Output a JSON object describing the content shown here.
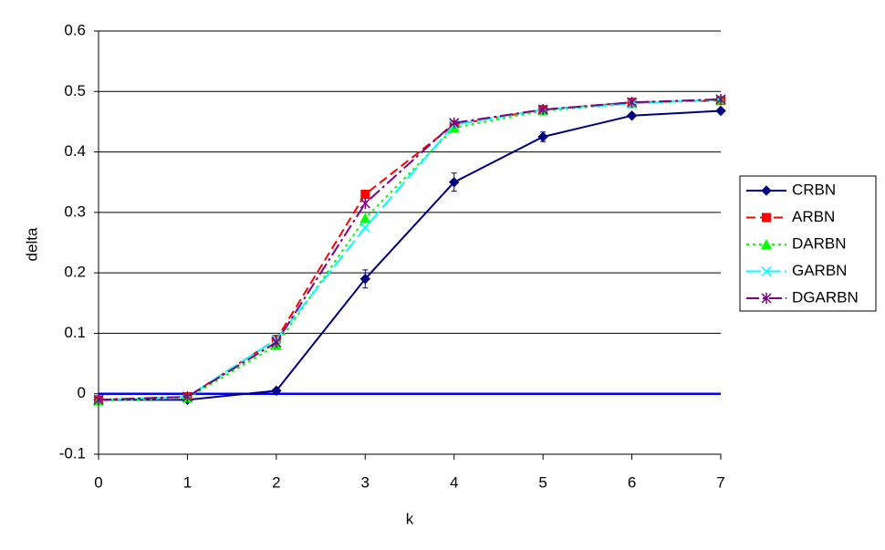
{
  "chart_data": {
    "type": "line",
    "x_label": "k",
    "y_label": "delta",
    "x": [
      0,
      1,
      2,
      3,
      4,
      5,
      6,
      7
    ],
    "xlim": [
      0,
      7
    ],
    "xticks": [
      0,
      1,
      2,
      3,
      4,
      5,
      6,
      7
    ],
    "ylim": [
      -0.1,
      0.6
    ],
    "yticks": [
      -0.1,
      0,
      0.1,
      0.2,
      0.3,
      0.4,
      0.5,
      0.6
    ],
    "grid": true,
    "zero_line_color": "#0000ff",
    "legend": "right",
    "series": [
      {
        "name": "CRBN",
        "color": "#000080",
        "marker": "diamond",
        "line_style": "solid",
        "values": [
          -0.01,
          -0.01,
          0.005,
          0.19,
          0.35,
          0.425,
          0.46,
          0.468
        ],
        "errors": [
          0.003,
          0.003,
          0.003,
          0.015,
          0.015,
          0.008,
          0.003,
          0.003
        ]
      },
      {
        "name": "ARBN",
        "color": "#ff0000",
        "marker": "square",
        "line_style": "dashed",
        "values": [
          -0.01,
          -0.005,
          0.09,
          0.33,
          0.445,
          0.47,
          0.482,
          0.485
        ]
      },
      {
        "name": "DARBN",
        "color": "#00ff00",
        "marker": "triangle",
        "line_style": "dotted",
        "values": [
          -0.012,
          -0.007,
          0.08,
          0.29,
          0.44,
          0.468,
          0.48,
          0.486
        ]
      },
      {
        "name": "GARBN",
        "color": "#00ffff",
        "marker": "x",
        "line_style": "longdash",
        "values": [
          -0.01,
          -0.005,
          0.09,
          0.275,
          0.445,
          0.47,
          0.48,
          0.487
        ]
      },
      {
        "name": "DGARBN",
        "color": "#800080",
        "marker": "star",
        "line_style": "dashdot",
        "values": [
          -0.01,
          -0.005,
          0.085,
          0.315,
          0.448,
          0.47,
          0.482,
          0.487
        ]
      }
    ]
  }
}
